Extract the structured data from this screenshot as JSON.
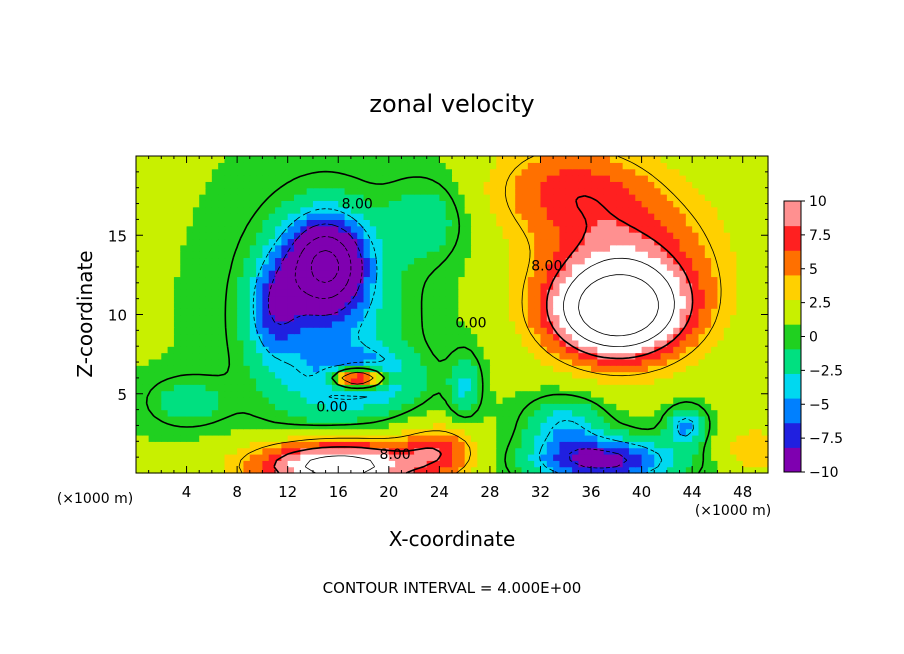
{
  "chart_data": {
    "type": "heatmap",
    "title": "zonal velocity",
    "xlabel": "X-coordinate",
    "ylabel": "Z-coordinate",
    "x_unit": "(×1000 m)",
    "y_unit": "(×1000 m)",
    "xlim": [
      0,
      50
    ],
    "ylim": [
      0,
      20
    ],
    "x_ticks": [
      "4",
      "8",
      "12",
      "16",
      "20",
      "24",
      "28",
      "32",
      "36",
      "40",
      "44",
      "48"
    ],
    "x_tick_values": [
      4,
      8,
      12,
      16,
      20,
      24,
      28,
      32,
      36,
      40,
      44,
      48
    ],
    "y_ticks": [
      "5",
      "10",
      "15"
    ],
    "y_tick_values": [
      5,
      10,
      15
    ],
    "colorbar": {
      "range": [
        -10,
        10
      ],
      "labels": [
        "10",
        "7.5",
        "5",
        "2.5",
        "0",
        "-2.5",
        "-5",
        "-7.5",
        "-10"
      ],
      "label_values": [
        10,
        7.5,
        5,
        2.5,
        0,
        -2.5,
        -5,
        -7.5,
        -10
      ]
    },
    "contour_labels": [
      {
        "text": "8.00",
        "x": 17.5,
        "y": 17.0
      },
      {
        "text": "8.00",
        "x": 32.5,
        "y": 13.1
      },
      {
        "text": "0.00",
        "x": 26.5,
        "y": 9.5
      },
      {
        "text": "0.00",
        "x": 15.5,
        "y": 4.2
      },
      {
        "text": "8.00",
        "x": 20.5,
        "y": 1.2
      }
    ],
    "features": [
      {
        "sign": -1,
        "x": 15,
        "y": 13.2,
        "amp": 15,
        "sx": 3.0,
        "sy": 2.8
      },
      {
        "sign": -1,
        "x": 11,
        "y": 10.5,
        "amp": 6,
        "sx": 2.0,
        "sy": 3.0
      },
      {
        "sign": -1,
        "x": 15,
        "y": 9.5,
        "amp": 5,
        "sx": 6.0,
        "sy": 7.0
      },
      {
        "sign": -1,
        "x": 23,
        "y": 16.0,
        "amp": 3,
        "sx": 3.0,
        "sy": 2.5
      },
      {
        "sign": 1,
        "x": 17.5,
        "y": 6.0,
        "amp": 16,
        "sx": 2.2,
        "sy": 0.7
      },
      {
        "sign": -1,
        "x": 18,
        "y": 6.0,
        "amp": 6,
        "sx": 4.0,
        "sy": 1.6
      },
      {
        "sign": 1,
        "x": 38,
        "y": 10.2,
        "amp": 16,
        "sx": 5.0,
        "sy": 2.8
      },
      {
        "sign": 1,
        "x": 39,
        "y": 13.0,
        "amp": 7,
        "sx": 7.0,
        "sy": 5.0
      },
      {
        "sign": 1,
        "x": 34,
        "y": 18.0,
        "amp": 5,
        "sx": 6.0,
        "sy": 3.0
      },
      {
        "sign": 1,
        "x": 16,
        "y": 0.5,
        "amp": 14,
        "sx": 6.5,
        "sy": 1.6
      },
      {
        "sign": 1,
        "x": 24,
        "y": 1.5,
        "amp": 5,
        "sx": 3.0,
        "sy": 1.5
      },
      {
        "sign": -1,
        "x": 37,
        "y": 0.8,
        "amp": 10,
        "sx": 5.5,
        "sy": 1.4
      },
      {
        "sign": -1,
        "x": 34,
        "y": 3.0,
        "amp": 5,
        "sx": 3.0,
        "sy": 1.8
      },
      {
        "sign": -1,
        "x": 43.5,
        "y": 3.0,
        "amp": 6,
        "sx": 1.5,
        "sy": 1.2
      },
      {
        "sign": -1,
        "x": 26,
        "y": 5.5,
        "amp": 4,
        "sx": 1.2,
        "sy": 2.0
      },
      {
        "sign": 1,
        "x": 49,
        "y": 1.5,
        "amp": 3,
        "sx": 3.0,
        "sy": 1.5
      },
      {
        "sign": -1,
        "x": 4,
        "y": 4.5,
        "amp": 3,
        "sx": 3.0,
        "sy": 1.5
      }
    ],
    "background_value": 1.0,
    "contour_interval": 4.0,
    "contour_interval_text": "CONTOUR INTERVAL = 4.000E+00",
    "palette": [
      "#7f00b0",
      "#2020e0",
      "#0080ff",
      "#00d8f0",
      "#00e080",
      "#20d020",
      "#c8f000",
      "#ffd000",
      "#ff7000",
      "#ff2020",
      "#ff9090",
      "#ffffff"
    ]
  }
}
